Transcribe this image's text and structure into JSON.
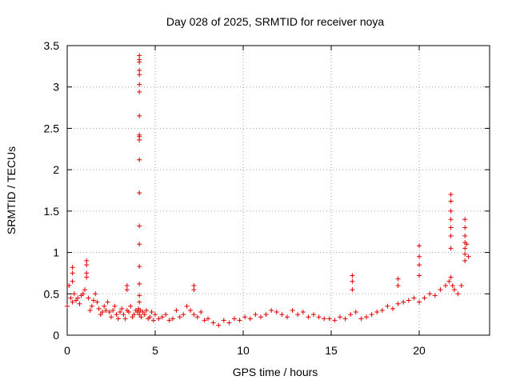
{
  "chart_data": {
    "type": "scatter",
    "title": "Day 028 of 2025, SRMTID for receiver noya",
    "xlabel": "GPS time / hours",
    "ylabel": "SRMTID / TECUs",
    "xlim": [
      0,
      24
    ],
    "ylim": [
      0,
      3.5
    ],
    "xticks": [
      0,
      5,
      10,
      15,
      20
    ],
    "xtick_labels": [
      "0",
      "5",
      "10",
      "15",
      "20"
    ],
    "yticks": [
      0,
      0.5,
      1,
      1.5,
      2,
      2.5,
      3,
      3.5
    ],
    "ytick_labels": [
      "0",
      "0.5",
      "1",
      "1.5",
      "2",
      "2.5",
      "3",
      "3.5"
    ],
    "grid": true,
    "marker": "+",
    "series": [
      {
        "name": "noya",
        "color": "#e00000",
        "x": [
          0.0,
          0.1,
          0.2,
          0.3,
          0.4,
          0.5,
          0.6,
          0.7,
          0.8,
          0.9,
          1.0,
          1.1,
          1.2,
          1.3,
          1.4,
          1.5,
          1.6,
          1.7,
          1.8,
          1.9,
          2.0,
          2.1,
          2.2,
          2.3,
          2.4,
          2.5,
          2.6,
          2.7,
          2.8,
          2.9,
          3.0,
          3.1,
          3.2,
          3.3,
          3.4,
          3.5,
          3.6,
          3.7,
          3.8,
          3.9,
          4.0,
          4.05,
          4.1,
          4.15,
          4.2,
          4.3,
          4.4,
          4.5,
          4.6,
          4.7,
          4.8,
          4.9,
          5.0,
          5.2,
          5.4,
          5.6,
          5.8,
          6.0,
          6.2,
          6.4,
          6.6,
          6.8,
          7.0,
          7.2,
          7.4,
          7.6,
          7.8,
          8.0,
          8.3,
          8.6,
          8.9,
          9.2,
          9.5,
          9.8,
          10.1,
          10.4,
          10.7,
          11.0,
          11.3,
          11.6,
          11.9,
          12.2,
          12.5,
          12.8,
          13.1,
          13.4,
          13.7,
          14.0,
          14.3,
          14.6,
          14.9,
          15.2,
          15.5,
          15.8,
          16.1,
          16.4,
          16.7,
          17.0,
          17.3,
          17.6,
          17.9,
          18.2,
          18.5,
          18.8,
          19.1,
          19.4,
          19.7,
          20.0,
          20.3,
          20.6,
          20.9,
          21.2,
          21.5,
          21.7,
          21.8,
          21.9,
          22.0,
          22.2,
          22.4,
          22.6,
          22.7,
          22.8,
          4.1,
          4.1,
          4.1,
          4.1,
          4.1,
          4.1,
          4.1,
          4.1,
          4.1,
          4.1,
          4.1,
          4.1,
          4.1,
          4.1,
          4.1,
          4.1,
          4.1,
          4.1,
          4.1,
          21.8,
          21.8,
          21.8,
          21.8,
          21.8,
          21.8,
          21.8,
          22.6,
          22.6,
          22.6,
          22.6,
          22.6,
          22.6,
          20.0,
          20.0,
          20.0,
          20.0,
          0.3,
          0.3,
          0.3,
          1.1,
          1.1,
          1.1,
          16.2,
          16.2,
          16.2,
          18.8,
          18.8,
          7.2,
          7.2,
          3.4,
          3.4
        ],
        "y": [
          0.35,
          0.6,
          0.45,
          0.4,
          0.5,
          0.42,
          0.45,
          0.38,
          0.48,
          0.5,
          0.55,
          0.7,
          0.45,
          0.3,
          0.35,
          0.42,
          0.5,
          0.4,
          0.32,
          0.25,
          0.28,
          0.35,
          0.3,
          0.4,
          0.28,
          0.22,
          0.3,
          0.35,
          0.25,
          0.2,
          0.28,
          0.32,
          0.25,
          0.2,
          0.3,
          0.28,
          0.35,
          0.22,
          0.25,
          0.3,
          0.28,
          0.32,
          0.25,
          0.3,
          0.22,
          0.28,
          0.25,
          0.3,
          0.2,
          0.22,
          0.28,
          0.18,
          0.25,
          0.2,
          0.22,
          0.25,
          0.18,
          0.2,
          0.3,
          0.22,
          0.25,
          0.35,
          0.3,
          0.25,
          0.22,
          0.28,
          0.18,
          0.2,
          0.15,
          0.12,
          0.18,
          0.15,
          0.2,
          0.18,
          0.22,
          0.2,
          0.25,
          0.22,
          0.25,
          0.3,
          0.28,
          0.25,
          0.22,
          0.3,
          0.25,
          0.28,
          0.22,
          0.25,
          0.22,
          0.2,
          0.2,
          0.18,
          0.22,
          0.2,
          0.25,
          0.28,
          0.2,
          0.22,
          0.25,
          0.28,
          0.3,
          0.35,
          0.32,
          0.38,
          0.4,
          0.42,
          0.45,
          0.4,
          0.45,
          0.5,
          0.48,
          0.55,
          0.6,
          0.65,
          0.7,
          0.6,
          0.55,
          0.5,
          0.6,
          0.9,
          1.1,
          0.95,
          3.38,
          3.33,
          3.3,
          3.2,
          3.15,
          3.03,
          2.94,
          2.65,
          2.42,
          2.4,
          2.36,
          2.12,
          1.72,
          1.32,
          1.1,
          0.83,
          0.62,
          0.48,
          0.4,
          1.7,
          1.62,
          1.5,
          1.4,
          1.3,
          1.2,
          1.05,
          1.4,
          1.3,
          1.2,
          1.12,
          1.05,
          0.98,
          1.08,
          0.95,
          0.85,
          0.72,
          0.82,
          0.75,
          0.65,
          0.9,
          0.85,
          0.75,
          0.72,
          0.65,
          0.55,
          0.68,
          0.6,
          0.6,
          0.55,
          0.6,
          0.55
        ]
      }
    ]
  }
}
